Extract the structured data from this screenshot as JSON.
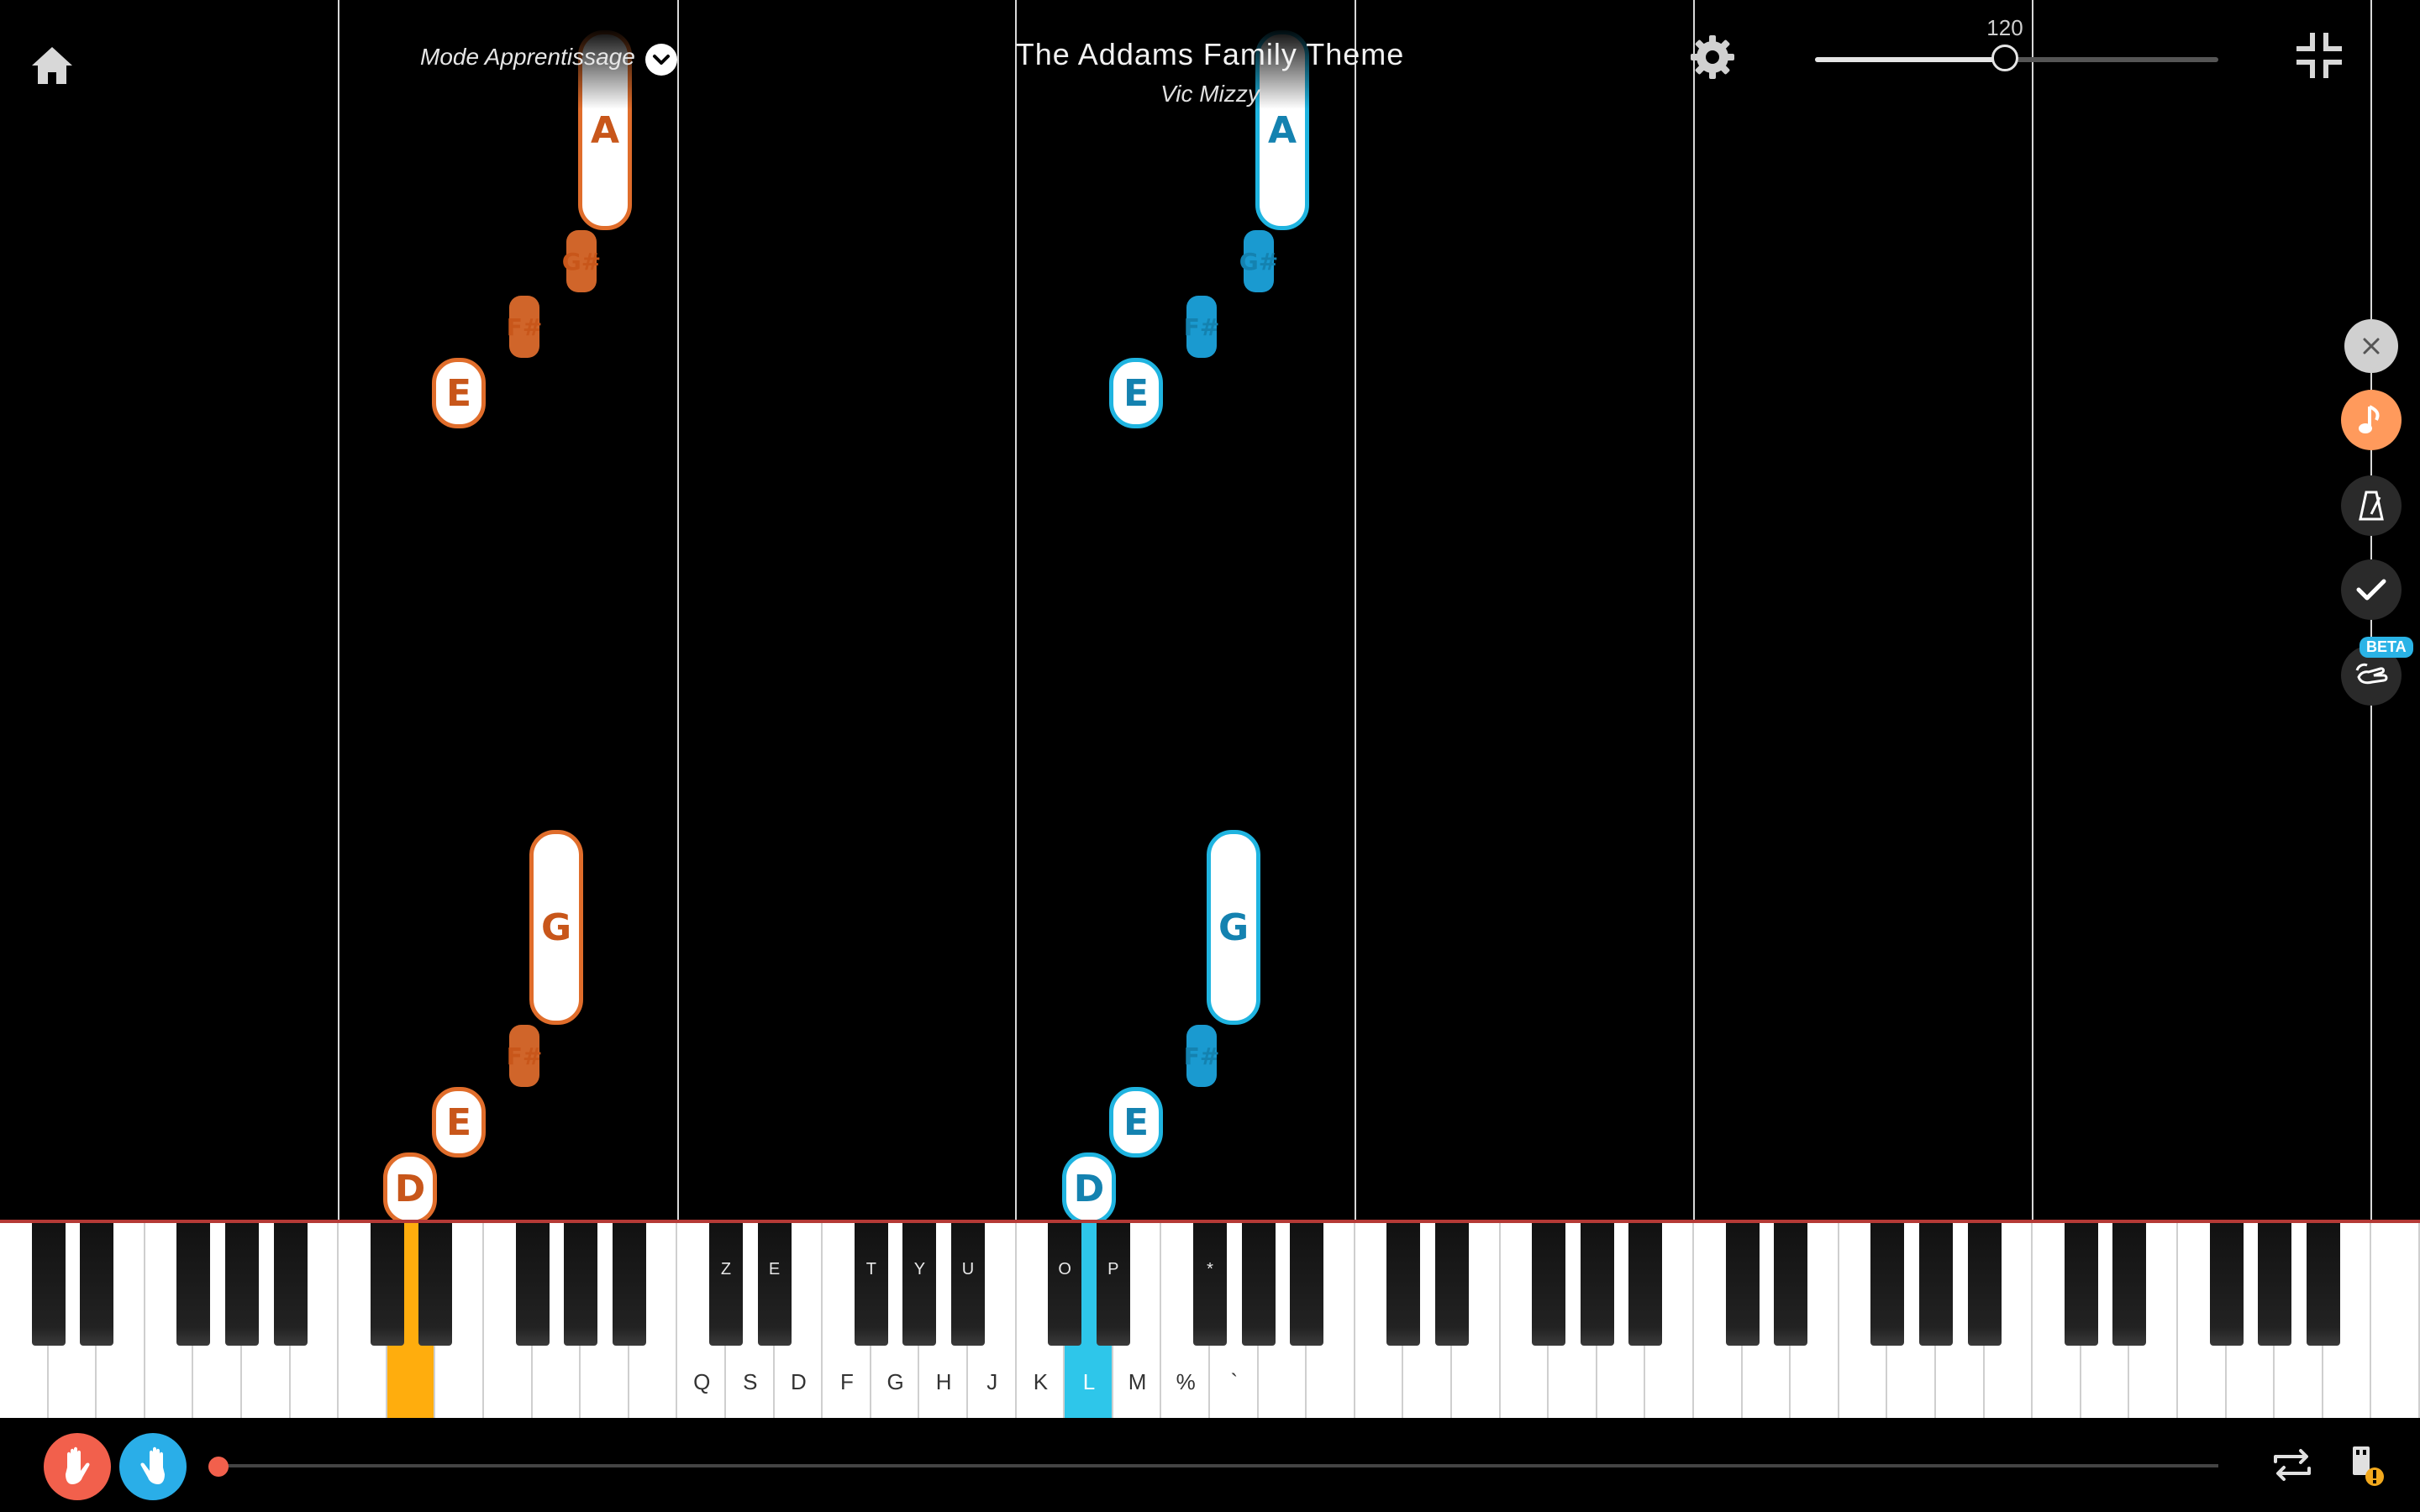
{
  "header": {
    "home_icon": "home-icon",
    "mode_label": "Mode Apprentissage",
    "mode_toggle_icon": "chevron-down-icon",
    "song_title": "The Addams Family Theme",
    "song_artist": "Vic Mizzy",
    "settings_icon": "gear-icon",
    "tempo": "120",
    "tempo_fraction": 0.47,
    "exit_fullscreen_icon": "exit-fullscreen-icon"
  },
  "side_panel": {
    "close_icon": "close-icon",
    "music_icon": "music-note-icon",
    "metronome_icon": "metronome-icon",
    "check_icon": "check-icon",
    "hand_icon": "hand-gesture-icon",
    "beta_label": "BETA"
  },
  "notes": {
    "left": [
      "A",
      "G#",
      "F#",
      "E",
      "G",
      "F#",
      "E",
      "D"
    ],
    "right": [
      "A",
      "G#",
      "F#",
      "E",
      "G",
      "F#",
      "E",
      "D"
    ]
  },
  "keyboard": {
    "white_labels": [
      "Q",
      "S",
      "D",
      "F",
      "G",
      "H",
      "J",
      "K",
      "L",
      "M",
      "%",
      "`"
    ],
    "black_labels": [
      "Z",
      "E",
      "T",
      "Y",
      "U",
      "O",
      "P",
      "*"
    ]
  },
  "footer": {
    "left_hand_icon": "left-hand-icon",
    "right_hand_icon": "right-hand-icon",
    "progress_fraction": 0.0,
    "loop_icon": "loop-icon",
    "usb_warning_icon": "usb-warning-icon"
  },
  "colors": {
    "left_hand": "#e06d2b",
    "right_hand": "#1fb4e0",
    "left_key_highlight": "#ffad0d",
    "right_key_highlight": "#2ec6ea",
    "accent": "#ff9a5c"
  }
}
